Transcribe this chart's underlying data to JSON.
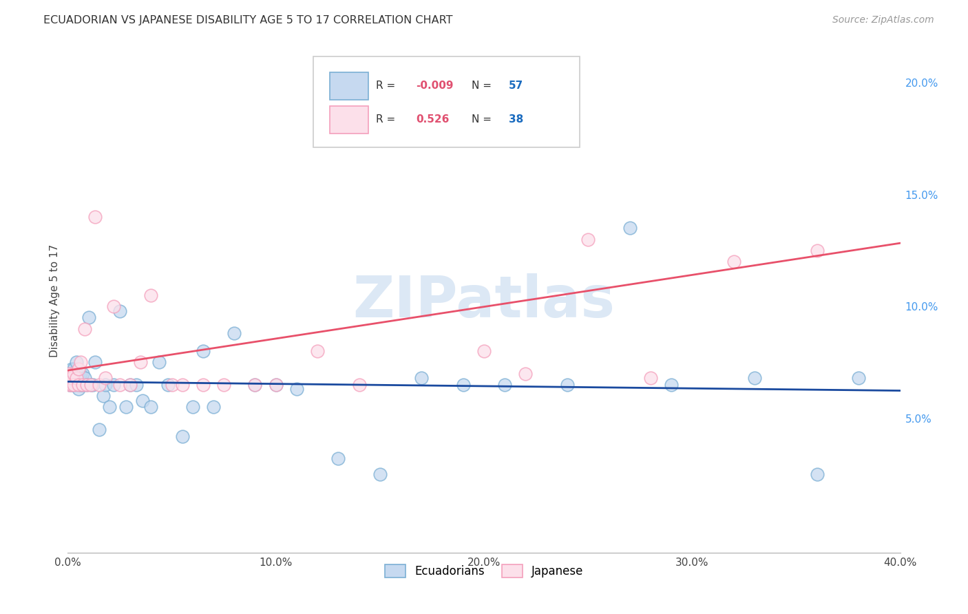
{
  "title": "ECUADORIAN VS JAPANESE DISABILITY AGE 5 TO 17 CORRELATION CHART",
  "source": "Source: ZipAtlas.com",
  "ylabel": "Disability Age 5 to 17",
  "xlim": [
    0.0,
    0.4
  ],
  "ylim": [
    -0.01,
    0.215
  ],
  "xticks": [
    0.0,
    0.1,
    0.2,
    0.3,
    0.4
  ],
  "xtick_labels": [
    "0.0%",
    "10.0%",
    "20.0%",
    "30.0%",
    "40.0%"
  ],
  "yticks_right": [
    0.05,
    0.1,
    0.15,
    0.2
  ],
  "ytick_labels_right": [
    "5.0%",
    "10.0%",
    "15.0%",
    "20.0%"
  ],
  "blue_scatter_face": "#c6d9f0",
  "blue_scatter_edge": "#7bafd4",
  "pink_scatter_face": "#fce0ea",
  "pink_scatter_edge": "#f4a0bc",
  "blue_line_color": "#1a4a9f",
  "pink_line_color": "#e8506a",
  "grid_color": "#cccccc",
  "watermark_color": "#dce8f5",
  "r1_val_color": "#e05070",
  "n1_val_color": "#1a6bbf",
  "r2_val_color": "#e05070",
  "n2_val_color": "#1a6bbf",
  "ecuadorian_x": [
    0.001,
    0.001,
    0.001,
    0.002,
    0.002,
    0.002,
    0.002,
    0.003,
    0.003,
    0.003,
    0.004,
    0.004,
    0.004,
    0.005,
    0.005,
    0.006,
    0.006,
    0.007,
    0.007,
    0.008,
    0.009,
    0.01,
    0.011,
    0.012,
    0.013,
    0.015,
    0.017,
    0.018,
    0.02,
    0.022,
    0.025,
    0.028,
    0.03,
    0.033,
    0.036,
    0.04,
    0.044,
    0.048,
    0.055,
    0.06,
    0.065,
    0.07,
    0.08,
    0.09,
    0.1,
    0.11,
    0.13,
    0.15,
    0.17,
    0.19,
    0.21,
    0.24,
    0.27,
    0.29,
    0.33,
    0.36,
    0.38
  ],
  "ecuadorian_y": [
    0.065,
    0.068,
    0.07,
    0.065,
    0.068,
    0.07,
    0.072,
    0.065,
    0.068,
    0.072,
    0.065,
    0.07,
    0.075,
    0.063,
    0.068,
    0.065,
    0.07,
    0.065,
    0.07,
    0.068,
    0.065,
    0.095,
    0.065,
    0.065,
    0.075,
    0.045,
    0.06,
    0.065,
    0.055,
    0.065,
    0.098,
    0.055,
    0.065,
    0.065,
    0.058,
    0.055,
    0.075,
    0.065,
    0.042,
    0.055,
    0.08,
    0.055,
    0.088,
    0.065,
    0.065,
    0.063,
    0.032,
    0.025,
    0.068,
    0.065,
    0.065,
    0.065,
    0.135,
    0.065,
    0.068,
    0.025,
    0.068
  ],
  "japanese_x": [
    0.001,
    0.001,
    0.002,
    0.002,
    0.003,
    0.003,
    0.004,
    0.005,
    0.005,
    0.006,
    0.007,
    0.008,
    0.009,
    0.011,
    0.013,
    0.015,
    0.018,
    0.022,
    0.025,
    0.03,
    0.035,
    0.04,
    0.05,
    0.055,
    0.065,
    0.075,
    0.09,
    0.1,
    0.12,
    0.14,
    0.155,
    0.175,
    0.2,
    0.22,
    0.25,
    0.28,
    0.32,
    0.36
  ],
  "japanese_y": [
    0.065,
    0.07,
    0.065,
    0.068,
    0.07,
    0.065,
    0.068,
    0.065,
    0.072,
    0.075,
    0.065,
    0.09,
    0.065,
    0.065,
    0.14,
    0.065,
    0.068,
    0.1,
    0.065,
    0.065,
    0.075,
    0.105,
    0.065,
    0.065,
    0.065,
    0.065,
    0.065,
    0.065,
    0.08,
    0.065,
    0.175,
    0.175,
    0.08,
    0.07,
    0.13,
    0.068,
    0.12,
    0.125
  ]
}
